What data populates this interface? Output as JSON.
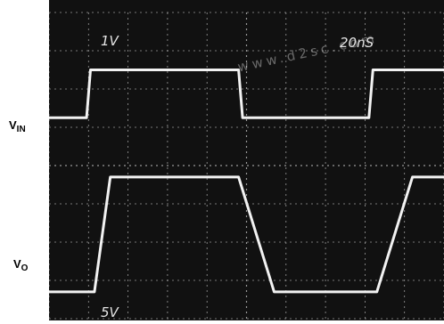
{
  "labels": {
    "vin_main": "V",
    "vin_sub": "IN",
    "vo_main": "V",
    "vo_sub": "O"
  },
  "watermark": "www.d2sc.com",
  "colors": {
    "screen": "#111111",
    "trace": "#f2f2f2",
    "grid": "#9a9a9a",
    "text": "#e6e6e6"
  },
  "chart_data": {
    "type": "line",
    "divisions": {
      "x": 10,
      "y": 8
    },
    "x": [
      0,
      0.95,
      1.05,
      2.2,
      2.4,
      3.5,
      3.6,
      4.8,
      4.9,
      6.3,
      6.5,
      8.1,
      8.2,
      9.2,
      9.3,
      10.0
    ],
    "series": [
      {
        "scale": "1V",
        "values": [
          1.25,
          1.25,
          2.5,
          2.5,
          1.25,
          1.25,
          1.25,
          1.25,
          1.25,
          1.25,
          1.25,
          1.25,
          1.25,
          1.25,
          2.5,
          2.5
        ]
      },
      {
        "scale": "5V",
        "values": [
          -3.3,
          -3.3,
          -3.3,
          -3.3,
          -3.3,
          -3.3,
          -3.3,
          -3.3,
          -3.3,
          -3.3,
          -3.3,
          -3.3,
          -3.3,
          -3.3,
          -3.3,
          -3.3
        ]
      }
    ],
    "traces": [
      {
        "scale": "1V",
        "x": [
          0,
          0.95,
          1.05,
          2.2,
          2.4,
          3.5,
          3.6,
          4.8,
          4.9,
          6.3,
          6.5,
          8.1,
          8.2,
          9.2,
          9.3,
          10.0
        ],
        "y": [
          1.25,
          1.25,
          2.5,
          2.5,
          2.5,
          2.5,
          2.5,
          2.5,
          1.25,
          1.25,
          1.25,
          1.25,
          2.5,
          2.5,
          2.5,
          2.5
        ]
      },
      {
        "scale": "5V",
        "x": [
          0,
          1.15,
          1.55,
          2.2,
          2.4,
          3.5,
          3.6,
          4.8,
          5.7,
          6.3,
          6.5,
          8.1,
          8.3,
          9.2,
          9.3,
          10.0
        ],
        "y": [
          -3.3,
          -3.3,
          -0.3,
          -0.3,
          -0.3,
          -0.3,
          -0.3,
          -0.3,
          -3.3,
          -3.3,
          -3.3,
          -3.3,
          -3.3,
          -0.3,
          -0.3,
          -0.3
        ]
      }
    ],
    "scale_labels": {
      "ch1": "1V",
      "time": "20nS",
      "ch2": "5V"
    }
  }
}
